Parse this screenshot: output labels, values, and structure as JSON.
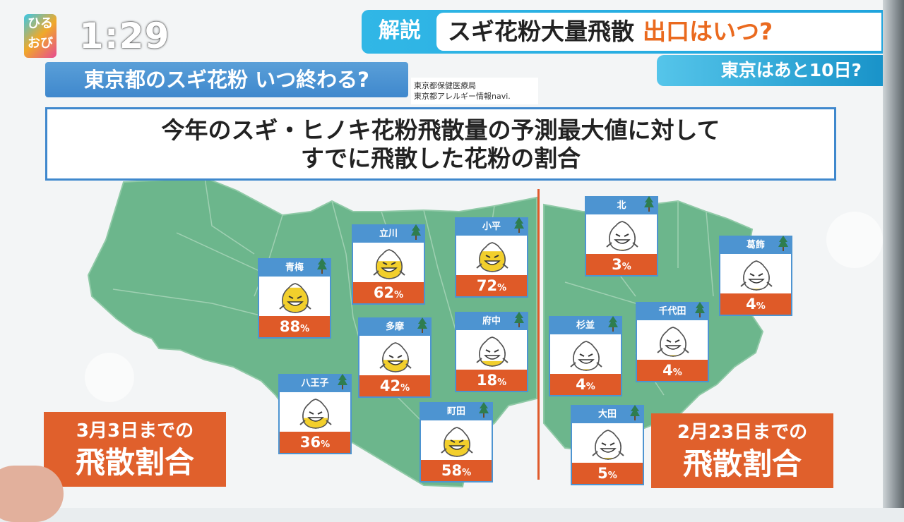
{
  "logo": {
    "line1": "ひる",
    "line2": "おび"
  },
  "clock": "1:29",
  "headline": {
    "tag": "解説",
    "main": "スギ花粉大量飛散",
    "accent": "出口はいつ?"
  },
  "subheadline": "東京はあと10日?",
  "panel": {
    "title": "東京都のスギ花粉 いつ終わる?",
    "source_line1": "東京都保健医療局",
    "source_line2": "東京都アレルギー情報navi.",
    "desc_line1": "今年のスギ・ヒノキ花粉飛散量の予測最大値に対して",
    "desc_line2": "すでに飛散した花粉の割合"
  },
  "periods": {
    "left": {
      "line1": "3月3日までの",
      "line2": "飛散割合"
    },
    "right": {
      "line1": "2月23日までの",
      "line2": "飛散割合"
    }
  },
  "pct_unit": "%",
  "colors": {
    "accent_orange": "#df5a28",
    "card_blue": "#4d94d1",
    "map_green": "#6cb68c"
  },
  "stations": [
    {
      "name": "青梅",
      "value": 88
    },
    {
      "name": "立川",
      "value": 62
    },
    {
      "name": "小平",
      "value": 72
    },
    {
      "name": "多摩",
      "value": 42
    },
    {
      "name": "府中",
      "value": 18
    },
    {
      "name": "八王子",
      "value": 36
    },
    {
      "name": "町田",
      "value": 58
    },
    {
      "name": "北",
      "value": 3
    },
    {
      "name": "葛飾",
      "value": 4
    },
    {
      "name": "杉並",
      "value": 4
    },
    {
      "name": "千代田",
      "value": 4
    },
    {
      "name": "大田",
      "value": 5
    }
  ]
}
